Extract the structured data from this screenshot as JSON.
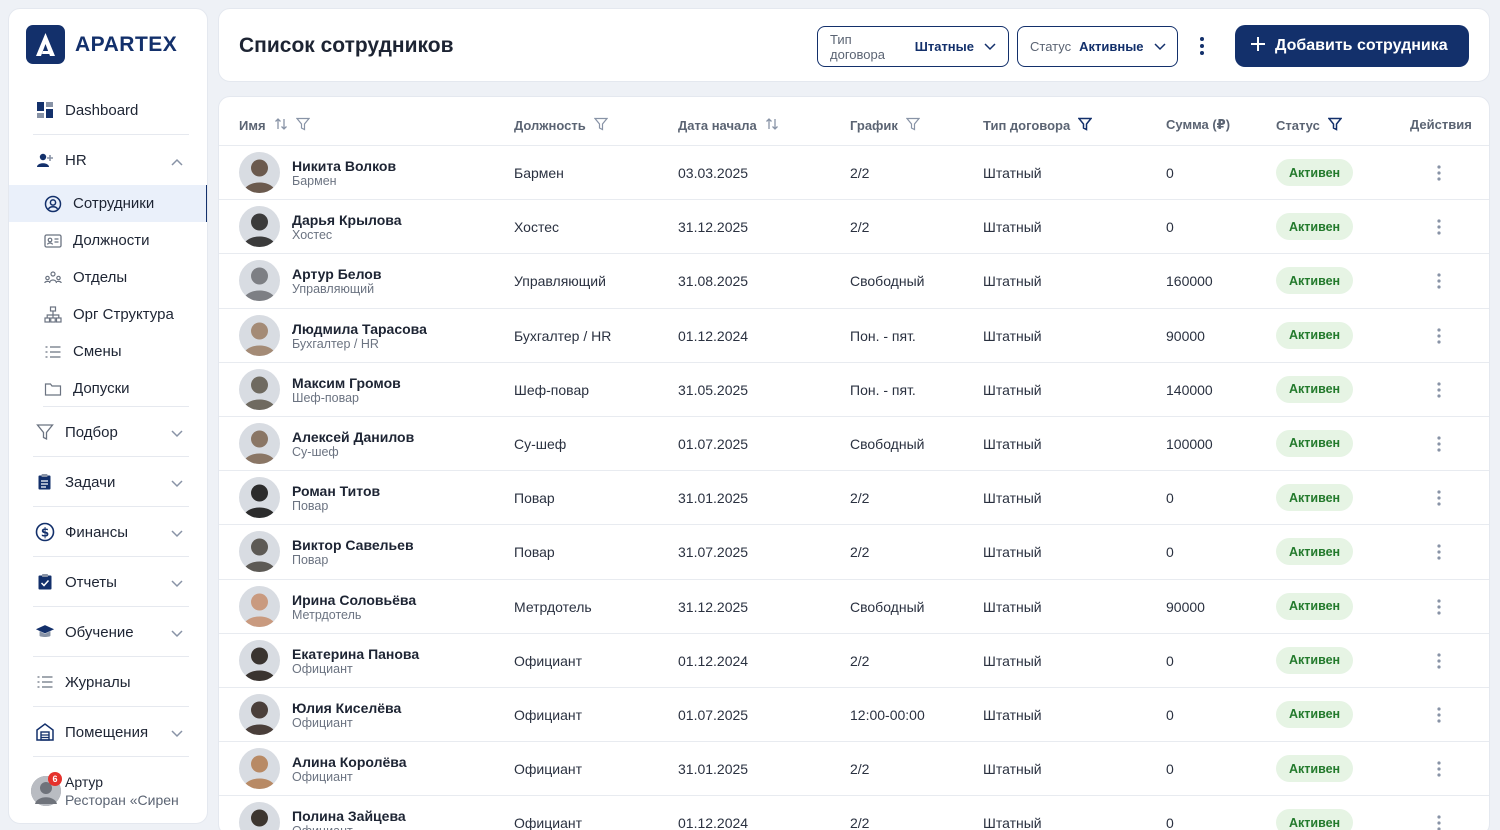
{
  "brand": {
    "name": "APARTEX"
  },
  "sidebar": {
    "items": [
      {
        "label": "Dashboard",
        "icon": "dashboard-icon"
      },
      {
        "label": "HR",
        "icon": "add-user-icon",
        "expanded": true
      },
      {
        "label": "Подбор",
        "icon": "funnel-icon"
      },
      {
        "label": "Задачи",
        "icon": "clipboard-icon"
      },
      {
        "label": "Финансы",
        "icon": "dollar-icon"
      },
      {
        "label": "Отчеты",
        "icon": "report-icon"
      },
      {
        "label": "Обучение",
        "icon": "graduation-icon"
      },
      {
        "label": "Журналы",
        "icon": "list-icon"
      },
      {
        "label": "Помещения",
        "icon": "building-icon"
      }
    ],
    "hr_sub": [
      {
        "label": "Сотрудники",
        "icon": "user-circle-icon",
        "active": true
      },
      {
        "label": "Должности",
        "icon": "id-card-icon"
      },
      {
        "label": "Отделы",
        "icon": "team-icon"
      },
      {
        "label": "Орг Структура",
        "icon": "org-chart-icon"
      },
      {
        "label": "Смены",
        "icon": "list-icon"
      },
      {
        "label": "Допуски",
        "icon": "folder-icon"
      }
    ],
    "user": {
      "name": "Артур",
      "org": "Ресторан «Сирен",
      "notifications": "6"
    }
  },
  "header": {
    "title": "Список сотрудников",
    "filter_contract": {
      "label": "Тип договора",
      "value": "Штатные"
    },
    "filter_status": {
      "label": "Статус",
      "value": "Активные"
    },
    "add_button": "Добавить сотрудника"
  },
  "table": {
    "columns": {
      "name": "Имя",
      "position": "Должность",
      "start": "Дата начала",
      "schedule": "График",
      "contract": "Тип договора",
      "sum": "Сумма (₽)",
      "status": "Статус",
      "actions": "Действия"
    },
    "rows": [
      {
        "name": "Никита Волков",
        "role": "Бармен",
        "position": "Бармен",
        "start": "03.03.2025",
        "schedule": "2/2",
        "contract": "Штатный",
        "sum": "0",
        "status": "Активен"
      },
      {
        "name": "Дарья Крылова",
        "role": "Хостес",
        "position": "Хостес",
        "start": "31.12.2025",
        "schedule": "2/2",
        "contract": "Штатный",
        "sum": "0",
        "status": "Активен"
      },
      {
        "name": "Артур Белов",
        "role": "Управляющий",
        "position": "Управляющий",
        "start": "31.08.2025",
        "schedule": "Свободный",
        "contract": "Штатный",
        "sum": "160000",
        "status": "Активен"
      },
      {
        "name": "Людмила Тарасова",
        "role": "Бухгалтер / HR",
        "position": "Бухгалтер / HR",
        "start": "01.12.2024",
        "schedule": "Пон. - пят.",
        "contract": "Штатный",
        "sum": "90000",
        "status": "Активен"
      },
      {
        "name": "Максим Громов",
        "role": "Шеф-повар",
        "position": "Шеф-повар",
        "start": "31.05.2025",
        "schedule": "Пон. - пят.",
        "contract": "Штатный",
        "sum": "140000",
        "status": "Активен"
      },
      {
        "name": "Алексей Данилов",
        "role": "Су-шеф",
        "position": "Су-шеф",
        "start": "01.07.2025",
        "schedule": "Свободный",
        "contract": "Штатный",
        "sum": "100000",
        "status": "Активен"
      },
      {
        "name": "Роман Титов",
        "role": "Повар",
        "position": "Повар",
        "start": "31.01.2025",
        "schedule": "2/2",
        "contract": "Штатный",
        "sum": "0",
        "status": "Активен"
      },
      {
        "name": "Виктор Савельев",
        "role": "Повар",
        "position": "Повар",
        "start": "31.07.2025",
        "schedule": "2/2",
        "contract": "Штатный",
        "sum": "0",
        "status": "Активен"
      },
      {
        "name": "Ирина Соловьёва",
        "role": "Метрдотель",
        "position": "Метрдотель",
        "start": "31.12.2025",
        "schedule": "Свободный",
        "contract": "Штатный",
        "sum": "90000",
        "status": "Активен"
      },
      {
        "name": "Екатерина Панова",
        "role": "Официант",
        "position": "Официант",
        "start": "01.12.2024",
        "schedule": "2/2",
        "contract": "Штатный",
        "sum": "0",
        "status": "Активен"
      },
      {
        "name": "Юлия Киселёва",
        "role": "Официант",
        "position": "Официант",
        "start": "01.07.2025",
        "schedule": "12:00-00:00",
        "contract": "Штатный",
        "sum": "0",
        "status": "Активен"
      },
      {
        "name": "Алина Королёва",
        "role": "Официант",
        "position": "Официант",
        "start": "31.01.2025",
        "schedule": "2/2",
        "contract": "Штатный",
        "sum": "0",
        "status": "Активен"
      },
      {
        "name": "Полина Зайцева",
        "role": "Официант",
        "position": "Официант",
        "start": "01.12.2024",
        "schedule": "2/2",
        "contract": "Штатный",
        "sum": "0",
        "status": "Активен"
      }
    ]
  },
  "colors": {
    "primary": "#13306b",
    "badge_bg": "#e6f4e4",
    "badge_text": "#237a2c",
    "background": "#eef1f6"
  }
}
